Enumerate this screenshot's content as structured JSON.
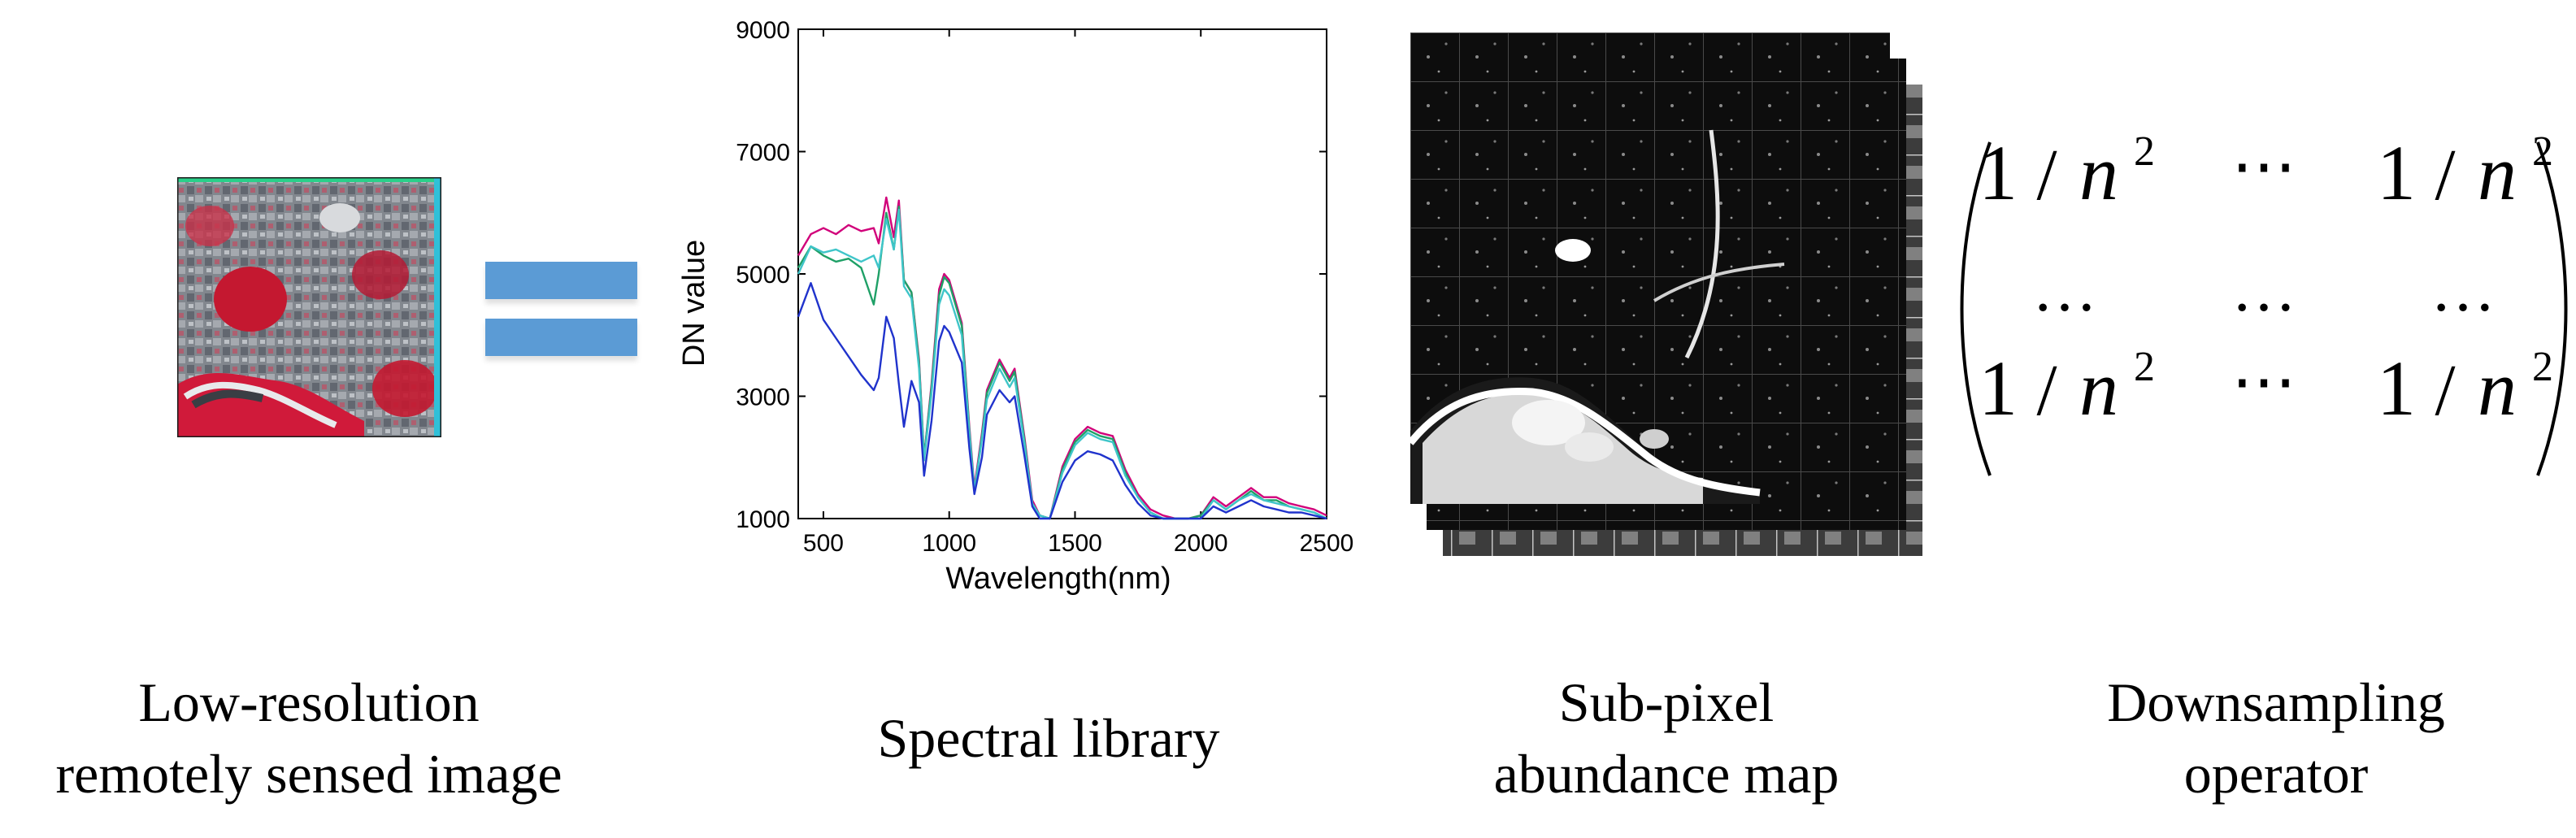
{
  "captions": {
    "lowres": [
      "Low-resolution",
      "remotely sensed image"
    ],
    "library": [
      "Spectral library"
    ],
    "abundance": [
      "Sub-pixel",
      "abundance map"
    ],
    "operator": [
      "Downsampling",
      "operator"
    ]
  },
  "matrix": {
    "rows": [
      [
        "1 / n2",
        "⋯",
        "1 / n2"
      ],
      [
        "…",
        "…",
        "…"
      ],
      [
        "1 / n2",
        "⋯",
        "1 / n2"
      ]
    ],
    "one": "1",
    "slash": "/",
    "n": "n",
    "sup": "2",
    "cdots": "⋯",
    "ldots": "…"
  },
  "colors": {
    "equals": "#5b9bd5",
    "series": [
      "#d1007a",
      "#1fa067",
      "#3fc5c9",
      "#2033cc"
    ]
  },
  "chart_data": {
    "type": "line",
    "xlabel": "Wavelength(nm)",
    "ylabel": "DN value",
    "xlim": [
      400,
      2500
    ],
    "ylim": [
      1000,
      9000
    ],
    "xticks": [
      500,
      1000,
      1500,
      2000,
      2500
    ],
    "yticks": [
      1000,
      3000,
      5000,
      7000,
      9000
    ],
    "grid": false,
    "x": [
      400,
      450,
      500,
      550,
      600,
      650,
      700,
      720,
      750,
      780,
      800,
      820,
      850,
      880,
      900,
      930,
      960,
      980,
      1000,
      1050,
      1080,
      1100,
      1130,
      1150,
      1200,
      1240,
      1260,
      1300,
      1330,
      1360,
      1400,
      1450,
      1500,
      1550,
      1600,
      1650,
      1700,
      1750,
      1800,
      1850,
      1900,
      1950,
      2000,
      2050,
      2100,
      2150,
      2200,
      2250,
      2300,
      2350,
      2400,
      2450,
      2500
    ],
    "series": [
      {
        "values": [
          5300,
          5650,
          5750,
          5650,
          5800,
          5700,
          5750,
          5500,
          6250,
          5600,
          6200,
          4900,
          4700,
          3600,
          2000,
          3200,
          4750,
          5000,
          4900,
          4200,
          2500,
          1500,
          2400,
          3100,
          3600,
          3300,
          3450,
          2300,
          1300,
          1050,
          1000,
          1850,
          2300,
          2500,
          2400,
          2350,
          1800,
          1400,
          1150,
          1050,
          1000,
          1000,
          1050,
          1350,
          1200,
          1350,
          1500,
          1350,
          1350,
          1250,
          1200,
          1150,
          1050
        ]
      },
      {
        "values": [
          5100,
          5450,
          5300,
          5200,
          5250,
          5100,
          4500,
          5000,
          6000,
          5400,
          6100,
          4900,
          4700,
          3550,
          2000,
          3150,
          4650,
          4950,
          4850,
          4150,
          2450,
          1450,
          2350,
          3050,
          3550,
          3250,
          3400,
          2250,
          1250,
          1050,
          1000,
          1800,
          2250,
          2450,
          2350,
          2300,
          1750,
          1350,
          1100,
          1000,
          1000,
          1000,
          1050,
          1300,
          1150,
          1300,
          1450,
          1300,
          1300,
          1200,
          1150,
          1100,
          1000
        ]
      },
      {
        "values": [
          5000,
          5450,
          5350,
          5400,
          5300,
          5200,
          5300,
          5100,
          5900,
          5400,
          6050,
          4800,
          4600,
          3450,
          1950,
          3050,
          4500,
          4750,
          4650,
          4000,
          2400,
          1450,
          2300,
          2950,
          3450,
          3150,
          3300,
          2200,
          1250,
          1050,
          1000,
          1750,
          2200,
          2400,
          2300,
          2250,
          1700,
          1350,
          1100,
          1000,
          1000,
          1000,
          1000,
          1300,
          1150,
          1300,
          1400,
          1300,
          1250,
          1200,
          1150,
          1100,
          1000
        ]
      },
      {
        "values": [
          4300,
          4850,
          4250,
          3950,
          3650,
          3350,
          3100,
          3300,
          4300,
          3950,
          3200,
          2500,
          3250,
          2900,
          1700,
          2600,
          3900,
          4150,
          4050,
          3550,
          2150,
          1400,
          2000,
          2700,
          3100,
          2900,
          3000,
          2000,
          1200,
          1000,
          1000,
          1600,
          1950,
          2100,
          2050,
          1950,
          1550,
          1250,
          1050,
          1000,
          1000,
          1000,
          1000,
          1200,
          1100,
          1200,
          1300,
          1200,
          1150,
          1100,
          1100,
          1050,
          1000
        ]
      }
    ]
  }
}
